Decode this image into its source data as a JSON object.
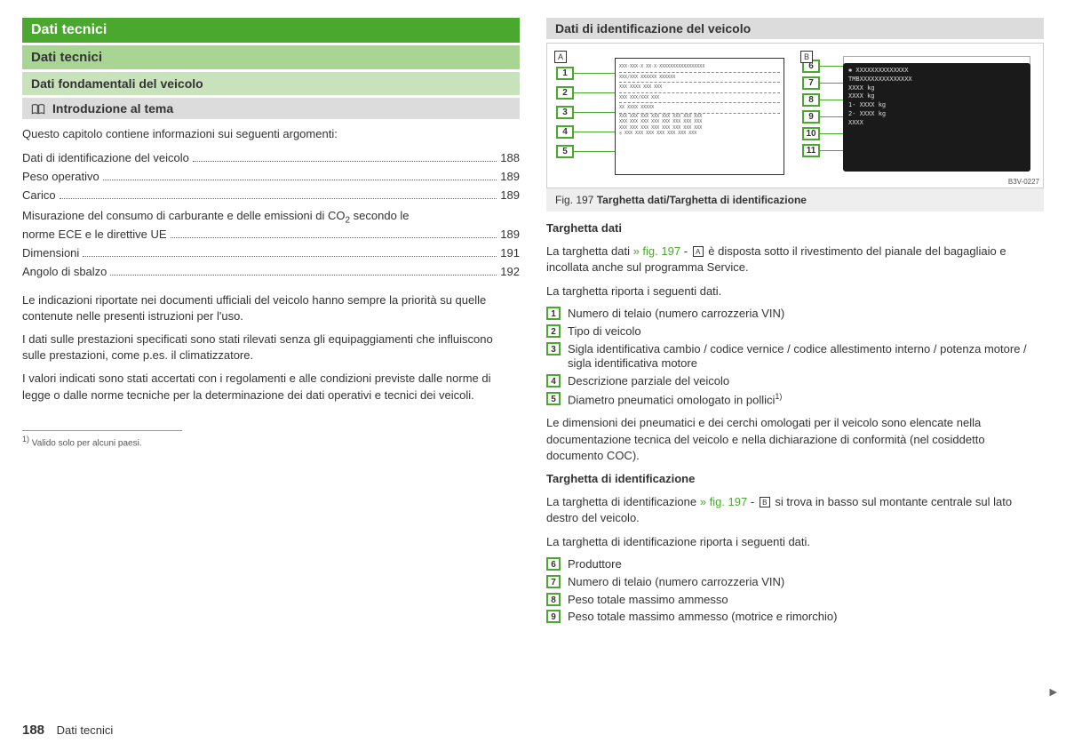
{
  "left": {
    "h1": "Dati tecnici",
    "h2": "Dati tecnici",
    "h3": "Dati fondamentali del veicolo",
    "intro_header": "Introduzione al tema",
    "intro_text": "Questo capitolo contiene informazioni sui seguenti argomenti:",
    "toc": [
      {
        "label": "Dati di identificazione del veicolo",
        "page": "188"
      },
      {
        "label": "Peso operativo",
        "page": "189"
      },
      {
        "label": "Carico",
        "page": "189"
      },
      {
        "label": "Misurazione del consumo di carburante e delle emissioni di CO",
        "sub": "2",
        "label2": " secondo le norme ECE e le direttive UE",
        "page": "189",
        "multiline": true
      },
      {
        "label": "Dimensioni",
        "page": "191"
      },
      {
        "label": "Angolo di sbalzo",
        "page": "192"
      }
    ],
    "para1": "Le indicazioni riportate nei documenti ufficiali del veicolo hanno sempre la priorità su quelle contenute nelle presenti istruzioni per l'uso.",
    "para2": "I dati sulle prestazioni specificati sono stati rilevati senza gli equipaggiamenti che influiscono sulle prestazioni, come p.es. il climatizzatore.",
    "para3": "I valori indicati sono stati accertati con i regolamenti e alle condizioni previste dalle norme di legge o dalle norme tecniche per la determinazione dei dati operativi e tecnici dei veicoli.",
    "footnote_mark": "1)",
    "footnote": "Valido solo per alcuni paesi."
  },
  "right": {
    "h_gray": "Dati di identificazione del veicolo",
    "fig_num": "Fig. 197",
    "fig_caption": "Targhetta dati/Targhetta di identificazione",
    "fig_code": "B3V-0227",
    "panel_a_letter": "A",
    "panel_b_letter": "B",
    "callouts_a": [
      "1",
      "2",
      "3",
      "4",
      "5"
    ],
    "callouts_b": [
      "6",
      "7",
      "8",
      "9",
      "10",
      "11"
    ],
    "plate_a_rows": [
      "XXX·XXX·X   XX·X·XXXXXXXXXXXXXXXXX",
      "XXX/XXX   XXXXXX   XXXXXX",
      "XXX   XXXX   XXX XXX",
      "XXX   XXX/XXX   XXX",
      "XX XXXX XXXXX",
      "XXX XXX XXX XXX XXX XXX XXX XXX",
      "XXX XXX XXX XXX XXX XXX XXX XXX",
      "XXX XXX XXX XXX XXX XXX XXX XXX",
      "◎  XXX XXX XXX XXX XXX XXX XXX"
    ],
    "plate_b_lines": [
      "✱ XXXXXXXXXXXXXX",
      "TMBXXXXXXXXXXXXXX",
      "  XXXX kg",
      "  XXXX kg",
      "1- XXXX kg",
      "2- XXXX kg",
      "XXXX"
    ],
    "sec1_title": "Targhetta dati",
    "sec1_line1_a": "La targhetta dati ",
    "sec1_link": "» fig. 197",
    "sec1_dash": " - ",
    "sec1_line1_b": " è disposta sotto il rivestimento del pianale del bagagliaio e incollata anche sul programma Service.",
    "sec1_line2": "La targhetta riporta i seguenti dati.",
    "legend_a": [
      {
        "n": "1",
        "t": "Numero di telaio (numero carrozzeria VIN)"
      },
      {
        "n": "2",
        "t": "Tipo di veicolo"
      },
      {
        "n": "3",
        "t": "Sigla identificativa cambio / codice vernice / codice allestimento interno / potenza motore / sigla identificativa motore"
      },
      {
        "n": "4",
        "t": "Descrizione parziale del veicolo"
      },
      {
        "n": "5",
        "t": "Diametro pneumatici omologato in pollici",
        "sup": "1)"
      }
    ],
    "sec1_para": "Le dimensioni dei pneumatici e dei cerchi omologati per il veicolo sono elencate nella documentazione tecnica del veicolo e nella dichiarazione di conformità (nel cosiddetto documento COC).",
    "sec2_title": "Targhetta di identificazione",
    "sec2_line1_a": "La targhetta di identificazione ",
    "sec2_line1_b": " si trova in basso sul montante centrale sul lato destro del veicolo.",
    "sec2_line2": "La targhetta di identificazione riporta i seguenti dati.",
    "legend_b": [
      {
        "n": "6",
        "t": "Produttore"
      },
      {
        "n": "7",
        "t": "Numero di telaio (numero carrozzeria VIN)"
      },
      {
        "n": "8",
        "t": "Peso totale massimo ammesso"
      },
      {
        "n": "9",
        "t": "Peso totale massimo ammesso (motrice e rimorchio)"
      }
    ]
  },
  "footer": {
    "page": "188",
    "section": "Dati tecnici"
  }
}
